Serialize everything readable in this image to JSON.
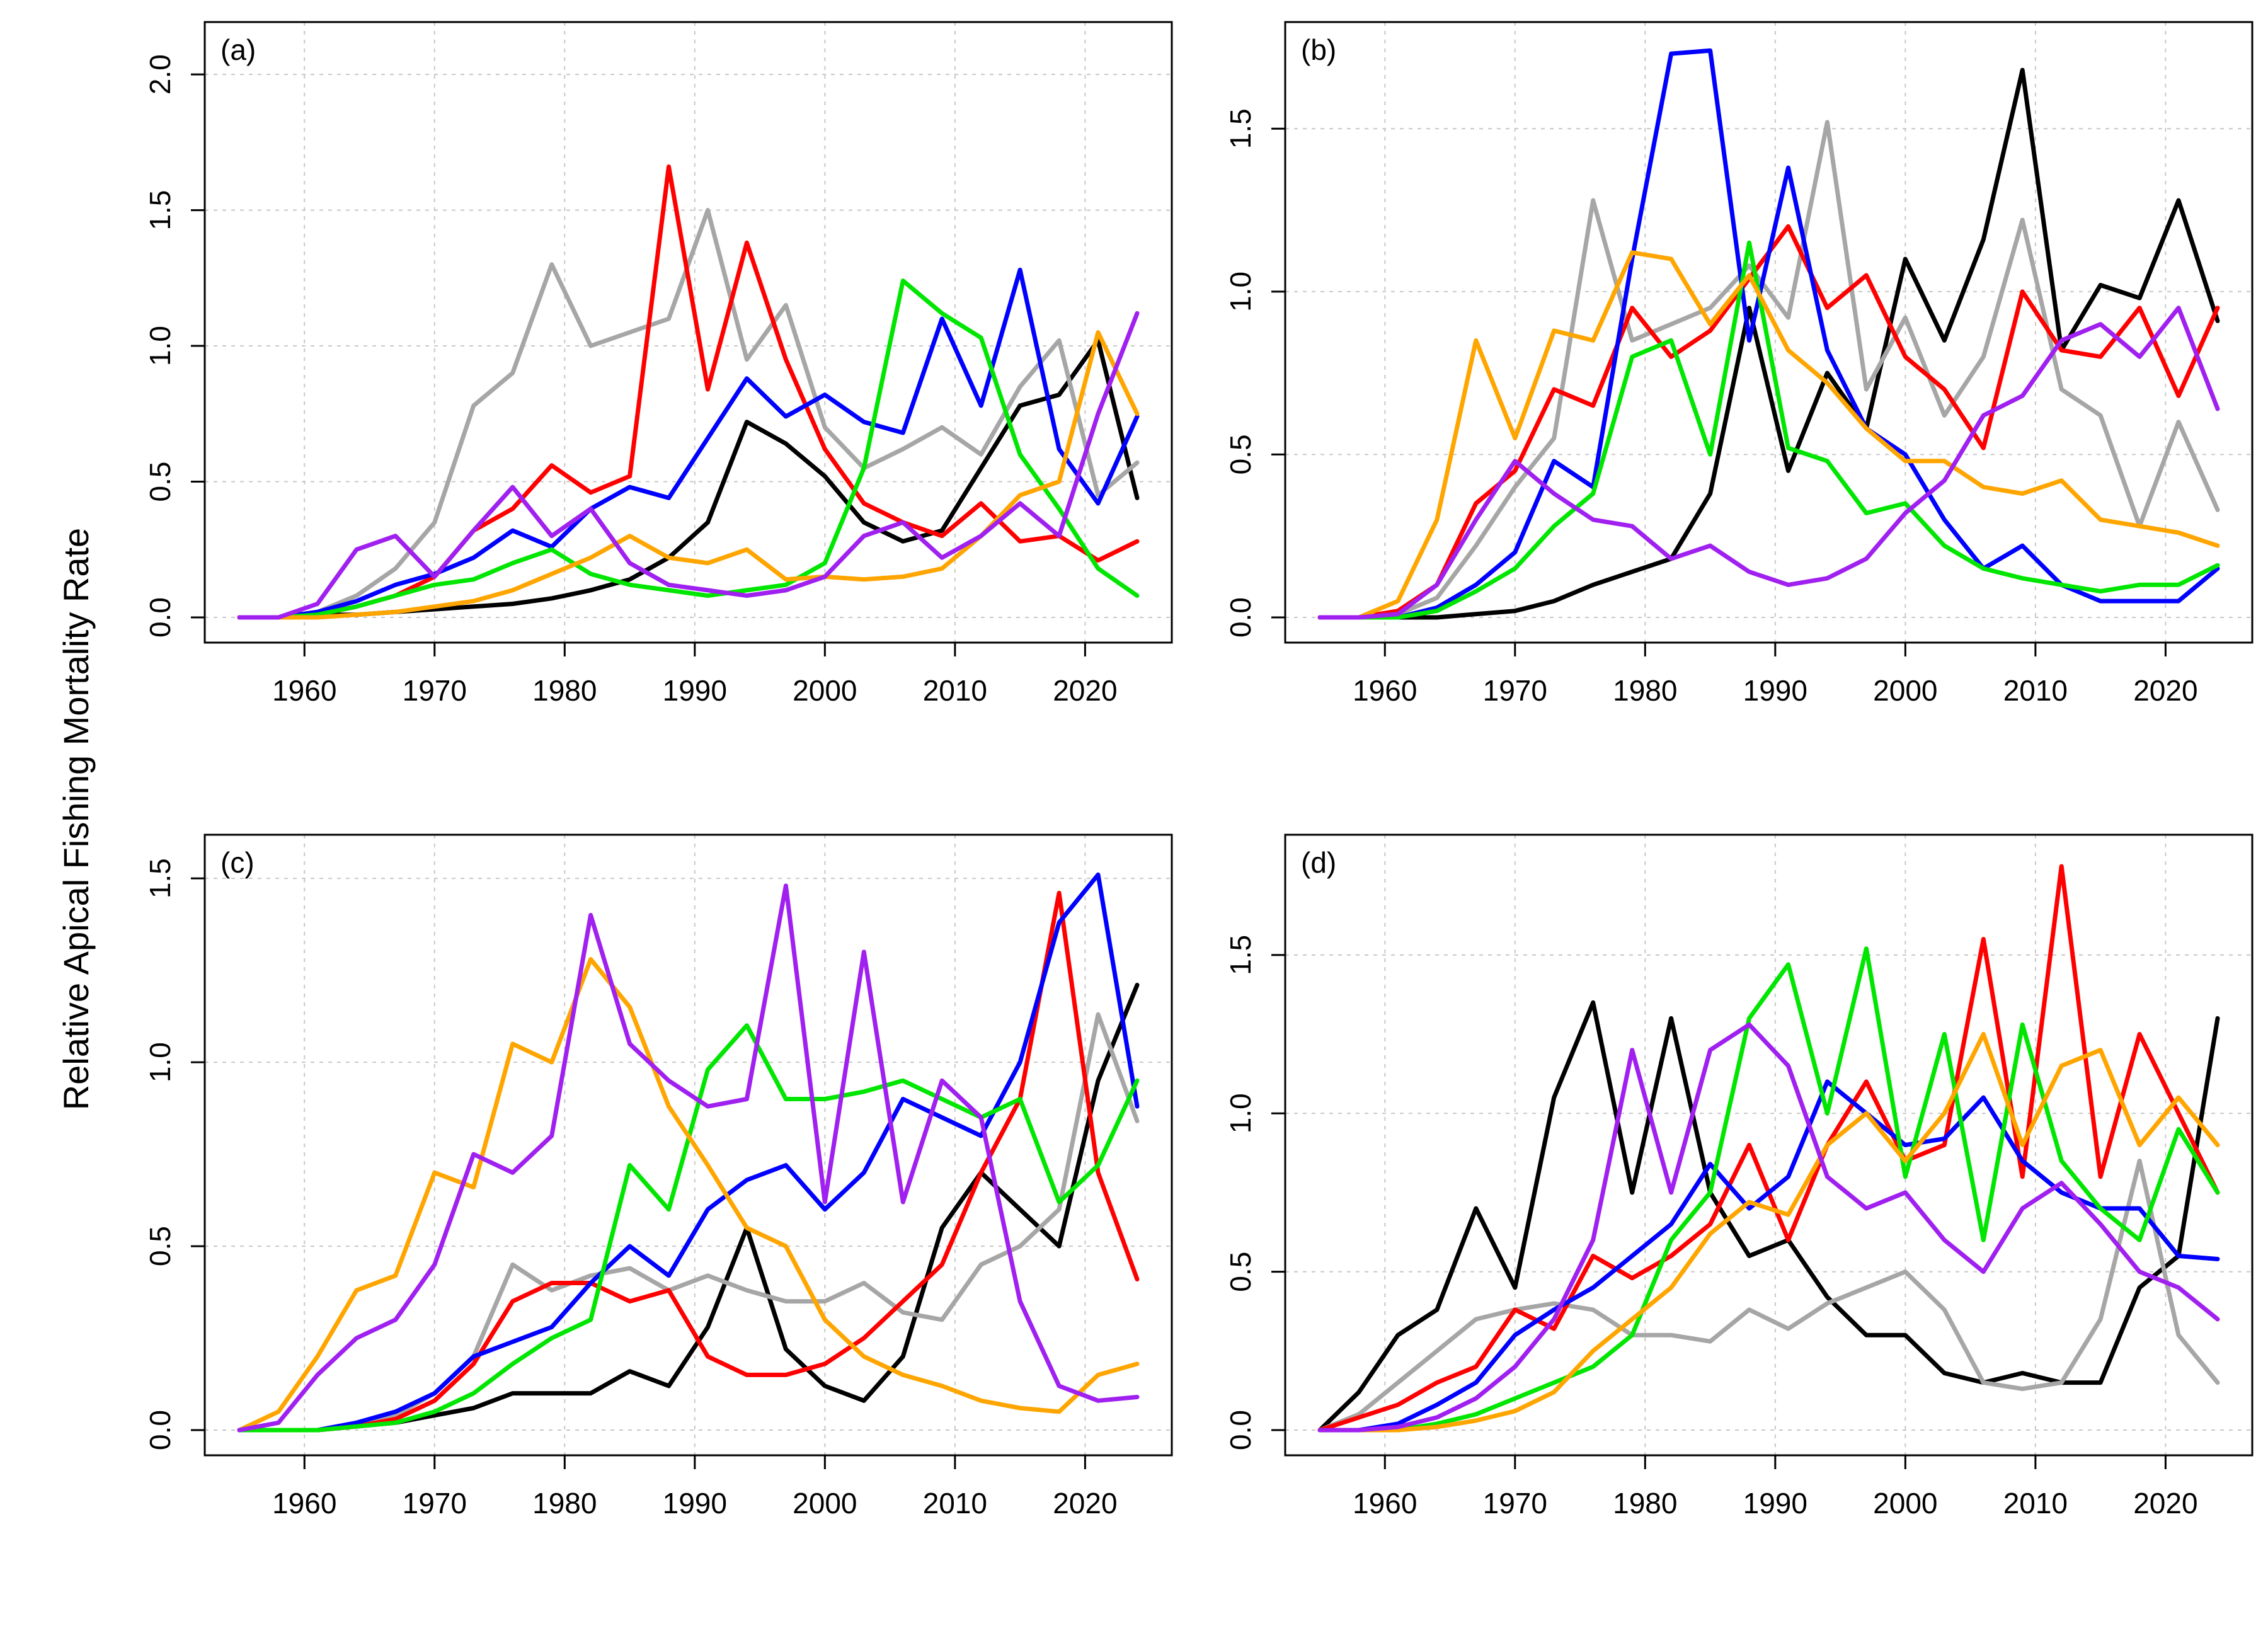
{
  "figure": {
    "ylabel": "Relative Apical Fishing Mortality Rate",
    "series_colors": [
      "#000000",
      "#a6a6a6",
      "#ff0000",
      "#0000ff",
      "#00e600",
      "#ffa500",
      "#a020f0"
    ]
  },
  "chart_data": [
    {
      "type": "line",
      "panel": "(a)",
      "xlim": [
        1955,
        2024
      ],
      "ylim": [
        0,
        2.1
      ],
      "xticks": [
        1960,
        1970,
        1980,
        1990,
        2000,
        2010,
        2020
      ],
      "yticks": [
        "0.0",
        "0.5",
        "1.0",
        "1.5",
        "2.0"
      ],
      "grid": true,
      "x": [
        1955,
        1958,
        1961,
        1964,
        1967,
        1970,
        1973,
        1976,
        1979,
        1982,
        1985,
        1988,
        1991,
        1994,
        1997,
        2000,
        2003,
        2006,
        2009,
        2012,
        2015,
        2018,
        2021,
        2024
      ],
      "series": [
        {
          "color": "#000000",
          "values": [
            0,
            0,
            0.01,
            0.01,
            0.02,
            0.03,
            0.04,
            0.05,
            0.07,
            0.1,
            0.14,
            0.22,
            0.35,
            0.72,
            0.64,
            0.52,
            0.35,
            0.28,
            0.32,
            0.55,
            0.78,
            0.82,
            1.02,
            0.44
          ]
        },
        {
          "color": "#a6a6a6",
          "values": [
            0,
            0,
            0.02,
            0.08,
            0.18,
            0.35,
            0.78,
            0.9,
            1.3,
            1.0,
            1.05,
            1.1,
            1.5,
            0.95,
            1.15,
            0.7,
            0.55,
            0.62,
            0.7,
            0.6,
            0.85,
            1.02,
            0.45,
            0.57
          ]
        },
        {
          "color": "#ff0000",
          "values": [
            0,
            0,
            0.01,
            0.04,
            0.08,
            0.15,
            0.32,
            0.4,
            0.56,
            0.46,
            0.52,
            1.66,
            0.84,
            1.38,
            0.95,
            0.62,
            0.42,
            0.35,
            0.3,
            0.42,
            0.28,
            0.3,
            0.21,
            0.28
          ]
        },
        {
          "color": "#0000ff",
          "values": [
            0,
            0,
            0.02,
            0.06,
            0.12,
            0.16,
            0.22,
            0.32,
            0.26,
            0.4,
            0.48,
            0.44,
            0.66,
            0.88,
            0.74,
            0.82,
            0.72,
            0.68,
            1.1,
            0.78,
            1.28,
            0.62,
            0.42,
            0.74
          ]
        },
        {
          "color": "#00e600",
          "values": [
            0,
            0,
            0.01,
            0.04,
            0.08,
            0.12,
            0.14,
            0.2,
            0.25,
            0.16,
            0.12,
            0.1,
            0.08,
            0.1,
            0.12,
            0.2,
            0.55,
            1.24,
            1.12,
            1.03,
            0.6,
            0.4,
            0.18,
            0.08
          ]
        },
        {
          "color": "#ffa500",
          "values": [
            0,
            0,
            0,
            0.01,
            0.02,
            0.04,
            0.06,
            0.1,
            0.16,
            0.22,
            0.3,
            0.22,
            0.2,
            0.25,
            0.14,
            0.15,
            0.14,
            0.15,
            0.18,
            0.3,
            0.45,
            0.5,
            1.05,
            0.75
          ]
        },
        {
          "color": "#a020f0",
          "values": [
            0,
            0,
            0.05,
            0.25,
            0.3,
            0.15,
            0.32,
            0.48,
            0.3,
            0.4,
            0.2,
            0.12,
            0.1,
            0.08,
            0.1,
            0.15,
            0.3,
            0.35,
            0.22,
            0.3,
            0.42,
            0.3,
            0.75,
            1.12
          ]
        }
      ]
    },
    {
      "type": "line",
      "panel": "(b)",
      "xlim": [
        1955,
        2024
      ],
      "ylim": [
        0,
        1.75
      ],
      "xticks": [
        1960,
        1970,
        1980,
        1990,
        2000,
        2010,
        2020
      ],
      "yticks": [
        "0.0",
        "0.5",
        "1.0",
        "1.5"
      ],
      "grid": true,
      "x": [
        1955,
        1958,
        1961,
        1964,
        1967,
        1970,
        1973,
        1976,
        1979,
        1982,
        1985,
        1988,
        1991,
        1994,
        1997,
        2000,
        2003,
        2006,
        2009,
        2012,
        2015,
        2018,
        2021,
        2024
      ],
      "series": [
        {
          "color": "#000000",
          "values": [
            0,
            0,
            0,
            0,
            0.01,
            0.02,
            0.05,
            0.1,
            0.14,
            0.18,
            0.38,
            0.95,
            0.45,
            0.75,
            0.58,
            1.1,
            0.85,
            1.16,
            1.68,
            0.82,
            1.02,
            0.98,
            1.28,
            0.91
          ]
        },
        {
          "color": "#a6a6a6",
          "values": [
            0,
            0,
            0.01,
            0.06,
            0.22,
            0.4,
            0.55,
            1.28,
            0.85,
            0.9,
            0.95,
            1.08,
            0.92,
            1.52,
            0.7,
            0.92,
            0.62,
            0.8,
            1.22,
            0.7,
            0.62,
            0.28,
            0.6,
            0.33
          ]
        },
        {
          "color": "#ff0000",
          "values": [
            0,
            0,
            0.02,
            0.1,
            0.35,
            0.45,
            0.7,
            0.65,
            0.95,
            0.8,
            0.88,
            1.04,
            1.2,
            0.95,
            1.05,
            0.8,
            0.7,
            0.52,
            1.0,
            0.82,
            0.8,
            0.95,
            0.68,
            0.95
          ]
        },
        {
          "color": "#0000ff",
          "values": [
            0,
            0,
            0,
            0.03,
            0.1,
            0.2,
            0.48,
            0.4,
            1.1,
            1.73,
            1.74,
            0.85,
            1.38,
            0.82,
            0.58,
            0.5,
            0.3,
            0.15,
            0.22,
            0.1,
            0.05,
            0.05,
            0.05,
            0.15
          ]
        },
        {
          "color": "#00e600",
          "values": [
            0,
            0,
            0,
            0.02,
            0.08,
            0.15,
            0.28,
            0.38,
            0.8,
            0.85,
            0.5,
            1.15,
            0.52,
            0.48,
            0.32,
            0.35,
            0.22,
            0.15,
            0.12,
            0.1,
            0.08,
            0.1,
            0.1,
            0.16
          ]
        },
        {
          "color": "#ffa500",
          "values": [
            0,
            0,
            0.05,
            0.3,
            0.85,
            0.55,
            0.88,
            0.85,
            1.12,
            1.1,
            0.9,
            1.05,
            0.82,
            0.72,
            0.58,
            0.48,
            0.48,
            0.4,
            0.38,
            0.42,
            0.3,
            0.28,
            0.26,
            0.22
          ]
        },
        {
          "color": "#a020f0",
          "values": [
            0,
            0,
            0.01,
            0.1,
            0.3,
            0.48,
            0.38,
            0.3,
            0.28,
            0.18,
            0.22,
            0.14,
            0.1,
            0.12,
            0.18,
            0.32,
            0.42,
            0.62,
            0.68,
            0.85,
            0.9,
            0.8,
            0.95,
            0.64
          ]
        }
      ]
    },
    {
      "type": "line",
      "panel": "(c)",
      "xlim": [
        1955,
        2024
      ],
      "ylim": [
        0,
        1.55
      ],
      "xticks": [
        1960,
        1970,
        1980,
        1990,
        2000,
        2010,
        2020
      ],
      "yticks": [
        "0.0",
        "0.5",
        "1.0",
        "1.5"
      ],
      "grid": true,
      "x": [
        1955,
        1958,
        1961,
        1964,
        1967,
        1970,
        1973,
        1976,
        1979,
        1982,
        1985,
        1988,
        1991,
        1994,
        1997,
        2000,
        2003,
        2006,
        2009,
        2012,
        2015,
        2018,
        2021,
        2024
      ],
      "series": [
        {
          "color": "#000000",
          "values": [
            0,
            0,
            0,
            0.01,
            0.02,
            0.04,
            0.06,
            0.1,
            0.1,
            0.1,
            0.16,
            0.12,
            0.28,
            0.55,
            0.22,
            0.12,
            0.08,
            0.2,
            0.55,
            0.7,
            0.6,
            0.5,
            0.95,
            1.21
          ]
        },
        {
          "color": "#a6a6a6",
          "values": [
            0,
            0,
            0,
            0.01,
            0.04,
            0.1,
            0.2,
            0.45,
            0.38,
            0.42,
            0.44,
            0.38,
            0.42,
            0.38,
            0.35,
            0.35,
            0.4,
            0.32,
            0.3,
            0.45,
            0.5,
            0.6,
            1.13,
            0.84
          ]
        },
        {
          "color": "#ff0000",
          "values": [
            0,
            0,
            0,
            0.01,
            0.03,
            0.08,
            0.18,
            0.35,
            0.4,
            0.4,
            0.35,
            0.38,
            0.2,
            0.15,
            0.15,
            0.18,
            0.25,
            0.35,
            0.45,
            0.7,
            0.9,
            1.46,
            0.7,
            0.41
          ]
        },
        {
          "color": "#0000ff",
          "values": [
            0,
            0,
            0,
            0.02,
            0.05,
            0.1,
            0.2,
            0.24,
            0.28,
            0.4,
            0.5,
            0.42,
            0.6,
            0.68,
            0.72,
            0.6,
            0.7,
            0.9,
            0.85,
            0.8,
            1.0,
            1.38,
            1.51,
            0.88
          ]
        },
        {
          "color": "#00e600",
          "values": [
            0,
            0,
            0,
            0.01,
            0.02,
            0.05,
            0.1,
            0.18,
            0.25,
            0.3,
            0.72,
            0.6,
            0.98,
            1.1,
            0.9,
            0.9,
            0.92,
            0.95,
            0.9,
            0.85,
            0.9,
            0.62,
            0.72,
            0.95
          ]
        },
        {
          "color": "#ffa500",
          "values": [
            0,
            0.05,
            0.2,
            0.38,
            0.42,
            0.7,
            0.66,
            1.05,
            1.0,
            1.28,
            1.15,
            0.88,
            0.72,
            0.55,
            0.5,
            0.3,
            0.2,
            0.15,
            0.12,
            0.08,
            0.06,
            0.05,
            0.15,
            0.18
          ]
        },
        {
          "color": "#a020f0",
          "values": [
            0,
            0.02,
            0.15,
            0.25,
            0.3,
            0.45,
            0.75,
            0.7,
            0.8,
            1.4,
            1.05,
            0.95,
            0.88,
            0.9,
            1.48,
            0.62,
            1.3,
            0.62,
            0.95,
            0.85,
            0.35,
            0.12,
            0.08,
            0.09
          ]
        }
      ]
    },
    {
      "type": "line",
      "panel": "(d)",
      "xlim": [
        1955,
        2024
      ],
      "ylim": [
        0,
        1.8
      ],
      "xticks": [
        1960,
        1970,
        1980,
        1990,
        2000,
        2010,
        2020
      ],
      "yticks": [
        "0.0",
        "0.5",
        "1.0",
        "1.5"
      ],
      "grid": true,
      "x": [
        1955,
        1958,
        1961,
        1964,
        1967,
        1970,
        1973,
        1976,
        1979,
        1982,
        1985,
        1988,
        1991,
        1994,
        1997,
        2000,
        2003,
        2006,
        2009,
        2012,
        2015,
        2018,
        2021,
        2024
      ],
      "series": [
        {
          "color": "#000000",
          "values": [
            0,
            0.12,
            0.3,
            0.38,
            0.7,
            0.45,
            1.05,
            1.35,
            0.75,
            1.3,
            0.75,
            0.55,
            0.6,
            0.42,
            0.3,
            0.3,
            0.18,
            0.15,
            0.18,
            0.15,
            0.15,
            0.45,
            0.55,
            1.3
          ]
        },
        {
          "color": "#a6a6a6",
          "values": [
            0,
            0.05,
            0.15,
            0.25,
            0.35,
            0.38,
            0.4,
            0.38,
            0.3,
            0.3,
            0.28,
            0.38,
            0.32,
            0.4,
            0.45,
            0.5,
            0.38,
            0.15,
            0.13,
            0.15,
            0.35,
            0.85,
            0.3,
            0.15
          ]
        },
        {
          "color": "#ff0000",
          "values": [
            0,
            0.04,
            0.08,
            0.15,
            0.2,
            0.38,
            0.32,
            0.55,
            0.48,
            0.55,
            0.65,
            0.9,
            0.6,
            0.9,
            1.1,
            0.85,
            0.9,
            1.55,
            0.8,
            1.78,
            0.8,
            1.25,
            1.0,
            0.75
          ]
        },
        {
          "color": "#0000ff",
          "values": [
            0,
            0,
            0.02,
            0.08,
            0.15,
            0.3,
            0.38,
            0.45,
            0.55,
            0.65,
            0.84,
            0.7,
            0.8,
            1.1,
            1.0,
            0.9,
            0.92,
            1.05,
            0.85,
            0.75,
            0.7,
            0.7,
            0.55,
            0.54
          ]
        },
        {
          "color": "#00e600",
          "values": [
            0,
            0,
            0,
            0.02,
            0.05,
            0.1,
            0.15,
            0.2,
            0.3,
            0.6,
            0.75,
            1.3,
            1.47,
            1.0,
            1.52,
            0.8,
            1.25,
            0.6,
            1.28,
            0.85,
            0.7,
            0.6,
            0.95,
            0.75
          ]
        },
        {
          "color": "#ffa500",
          "values": [
            0,
            0,
            0,
            0.01,
            0.03,
            0.06,
            0.12,
            0.25,
            0.35,
            0.45,
            0.62,
            0.72,
            0.68,
            0.9,
            1.0,
            0.85,
            1.0,
            1.25,
            0.9,
            1.15,
            1.2,
            0.9,
            1.05,
            0.9
          ]
        },
        {
          "color": "#a020f0",
          "values": [
            0,
            0,
            0.01,
            0.04,
            0.1,
            0.2,
            0.35,
            0.6,
            1.2,
            0.75,
            1.2,
            1.28,
            1.15,
            0.8,
            0.7,
            0.75,
            0.6,
            0.5,
            0.7,
            0.78,
            0.65,
            0.5,
            0.45,
            0.35
          ]
        }
      ]
    }
  ]
}
